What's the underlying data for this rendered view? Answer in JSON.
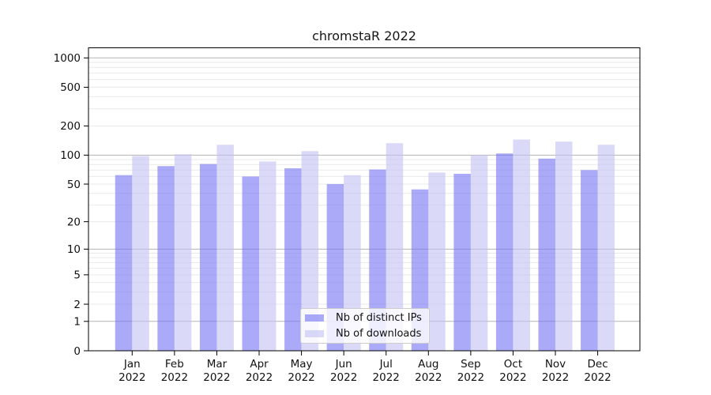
{
  "chart_data": {
    "type": "bar",
    "title": "chromstaR 2022",
    "categories": [
      "Jan 2022",
      "Feb 2022",
      "Mar 2022",
      "Apr 2022",
      "May 2022",
      "Jun 2022",
      "Jul 2022",
      "Aug 2022",
      "Sep 2022",
      "Oct 2022",
      "Nov 2022",
      "Dec 2022"
    ],
    "month_labels": [
      "Jan",
      "Feb",
      "Mar",
      "Apr",
      "May",
      "Jun",
      "Jul",
      "Aug",
      "Sep",
      "Oct",
      "Nov",
      "Dec"
    ],
    "year": "2022",
    "series": [
      {
        "name": "Nb of distinct IPs",
        "color": "#7676f4",
        "opacity": 0.62,
        "values": [
          62,
          77,
          81,
          60,
          73,
          50,
          71,
          44,
          64,
          104,
          92,
          70
        ]
      },
      {
        "name": "Nb of downloads",
        "color": "#c3c3f4",
        "opacity": 0.62,
        "values": [
          98,
          102,
          128,
          86,
          110,
          62,
          133,
          66,
          100,
          145,
          138,
          128
        ]
      }
    ],
    "xlabel": "",
    "ylabel": "",
    "y_scale": "log1p",
    "ylim": [
      0,
      1268
    ],
    "y_ticks": [
      0,
      1,
      2,
      5,
      10,
      20,
      50,
      100,
      200,
      500,
      1000
    ],
    "y_major_gridlines": [
      1,
      10,
      100,
      1000
    ],
    "y_minor_gridlines": [
      2,
      3,
      4,
      5,
      6,
      7,
      8,
      9,
      20,
      30,
      40,
      50,
      60,
      70,
      80,
      90,
      200,
      300,
      400,
      500,
      600,
      700,
      800,
      900
    ],
    "grid": true,
    "legend_position": "bottom-center",
    "colors": {
      "major_grid": "#b3b3b3",
      "minor_grid": "#e9e9e9",
      "axis": "#000000",
      "text": "#111111"
    }
  }
}
